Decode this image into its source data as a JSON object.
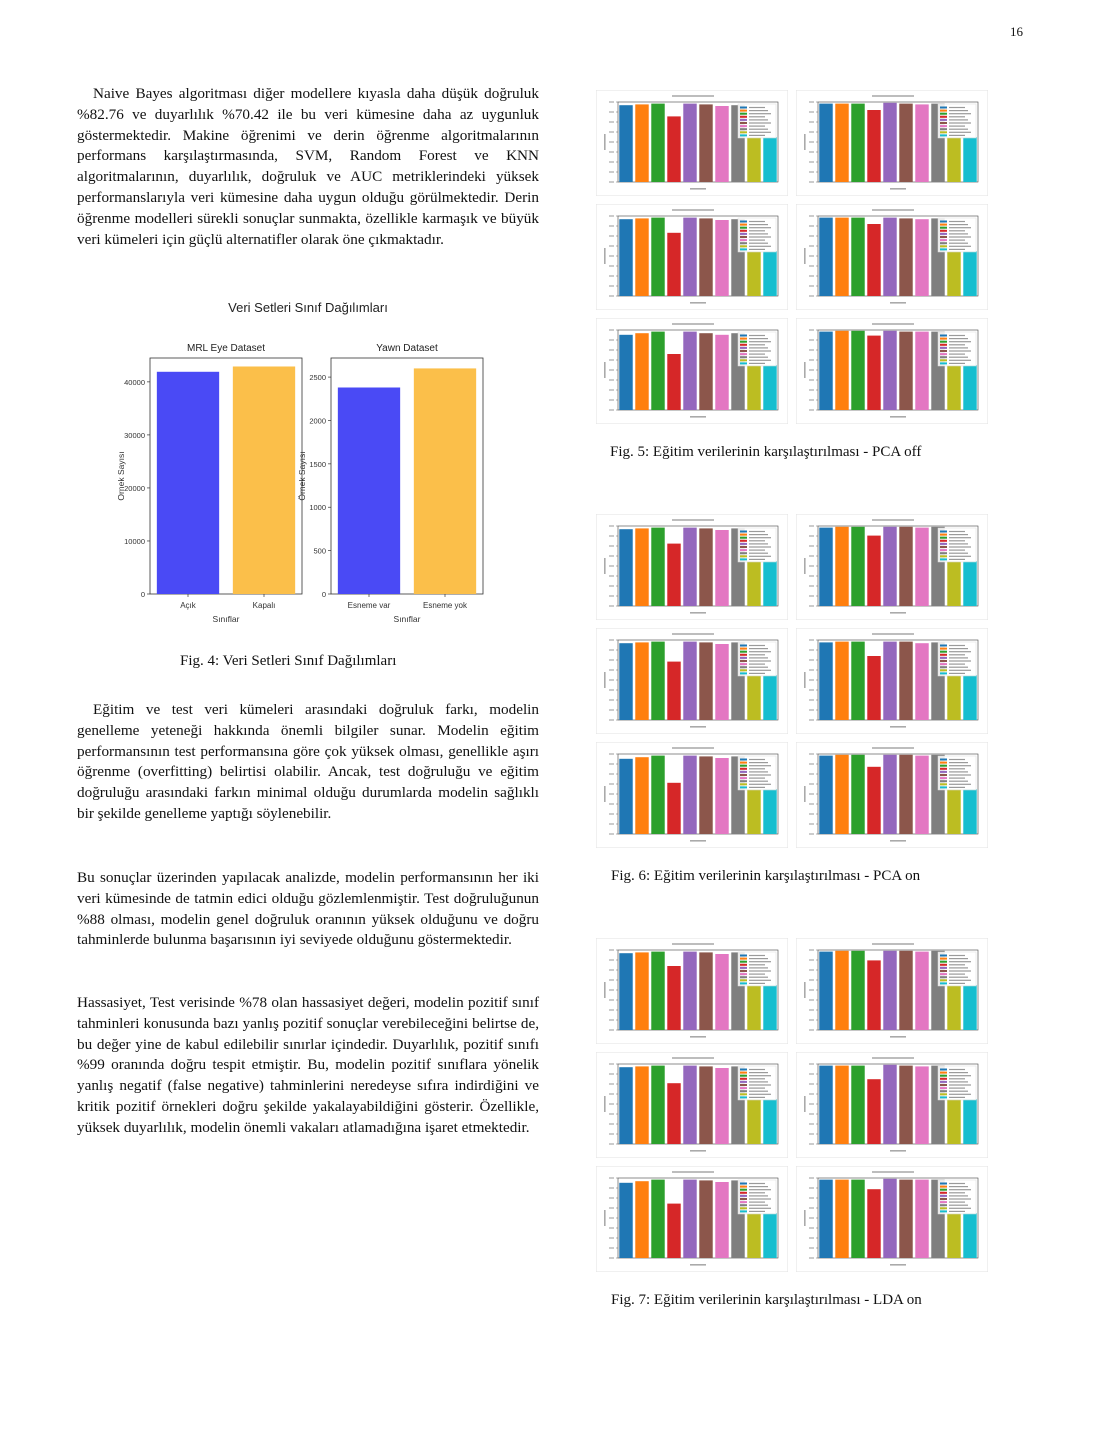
{
  "page_number": "16",
  "paragraphs": {
    "p1": "Naive Bayes algoritması diğer modellere kıyasla daha düşük doğruluk %82.76 ve duyarlılık %70.42 ile bu veri kümesine daha az uygunluk göstermektedir. Makine öğrenimi ve derin öğrenme algoritmalarının performans karşılaştırmasında, SVM, Random Forest ve KNN algoritmalarının, duyarlılık, doğruluk ve AUC metriklerindeki yüksek performanslarıyla veri kümesine daha uygun olduğu görülmektedir. Derin öğrenme modelleri sürekli sonuçlar sunmakta, özellikle karmaşık ve büyük veri kümeleri için güçlü alternatifler olarak öne çıkmaktadır.",
    "p2": "Eğitim ve test veri kümeleri arasındaki doğruluk farkı, modelin genelleme yeteneği hakkında önemli bilgiler sunar. Modelin eğitim performansının test performansına göre çok yüksek olması, genellikle aşırı öğrenme (overfitting) belirtisi olabilir. Ancak, test doğruluğu ve eğitim doğruluğu arasındaki farkın minimal olduğu durumlarda modelin sağlıklı bir şekilde genelleme yaptığı söylenebilir.",
    "p3": "Bu sonuçlar üzerinden yapılacak analizde, modelin performansının her iki veri kümesinde de tatmin edici olduğu gözlemlenmiştir. Test doğruluğunun %88 olması, modelin genel doğruluk oranının yüksek olduğunu ve doğru tahminlerde bulunma başarısının iyi seviyede olduğunu göstermektedir.",
    "p4": "Hassasiyet, Test verisinde %78 olan hassasiyet değeri, modelin pozitif sınıf tahminleri konusunda bazı yanlış pozitif sonuçlar verebileceğini belirtse de, bu değer yine de kabul edilebilir sınırlar içindedir. Duyarlılık, pozitif sınıfı %99 oranında doğru tespit etmiştir. Bu, modelin pozitif sınıflara yönelik yanlış negatif (false negative) tahminlerini neredeyse sıfıra indirdiğini ve kritik pozitif örnekleri doğru şekilde yakalayabildiğini gösterir. Özellikle, yüksek duyarlılık, modelin önemli vakaları atlamadığına işaret etmektedir."
  },
  "captions": {
    "fig4": "Fig. 4: Veri Setleri Sınıf Dağılımları",
    "fig5": "Fig. 5: Eğitim verilerinin karşılaştırılması - PCA off",
    "fig6": "Fig. 6: Eğitim verilerinin karşılaştırılması - PCA on",
    "fig7": "Fig. 7: Eğitim verilerinin karşılaştırılması - LDA on"
  },
  "chart_data": [
    {
      "type": "bar",
      "id": "fig4",
      "title": "Veri Setleri Sınıf Dağılımları",
      "subplots": [
        {
          "title": "MRL Eye Dataset",
          "categories": [
            "Açık",
            "Kapalı"
          ],
          "values": [
            41900,
            42900
          ],
          "colors": [
            "#4a4af5",
            "#fbbf4a"
          ],
          "xlabel": "Sınıflar",
          "ylabel": "Örnek Sayısı",
          "ylim": [
            0,
            44500
          ],
          "yticks": [
            0,
            10000,
            20000,
            30000,
            40000
          ]
        },
        {
          "title": "Yawn Dataset",
          "categories": [
            "Esneme var",
            "Esneme yok"
          ],
          "values": [
            2380,
            2600
          ],
          "colors": [
            "#4a4af5",
            "#fbbf4a"
          ],
          "xlabel": "Sınıflar",
          "ylabel": "Örnek Sayısı",
          "ylim": [
            0,
            2720
          ],
          "yticks": [
            0,
            500,
            1000,
            1500,
            2000,
            2500
          ]
        }
      ]
    },
    {
      "type": "bar",
      "id": "fig5",
      "layout": "3x2 grid",
      "ylim": [
        0,
        1
      ],
      "colors": [
        "#1f77b4",
        "#ff7f0e",
        "#2ca02c",
        "#d62728",
        "#9467bd",
        "#8c564b",
        "#e377c2",
        "#7f7f7f",
        "#bcbd22",
        "#17becf"
      ],
      "panels": [
        {
          "values": [
            0.96,
            0.97,
            0.98,
            0.82,
            0.98,
            0.97,
            0.95,
            0.96,
            0.56,
            0.56
          ]
        },
        {
          "values": [
            0.98,
            0.98,
            0.98,
            0.9,
            0.99,
            0.98,
            0.97,
            0.98,
            0.56,
            0.56
          ]
        },
        {
          "values": [
            0.96,
            0.97,
            0.98,
            0.79,
            0.98,
            0.97,
            0.95,
            0.96,
            0.56,
            0.56
          ]
        },
        {
          "values": [
            0.98,
            0.98,
            0.98,
            0.9,
            0.98,
            0.97,
            0.96,
            0.97,
            0.56,
            0.56
          ]
        },
        {
          "values": [
            0.94,
            0.96,
            0.98,
            0.7,
            0.98,
            0.96,
            0.94,
            0.96,
            0.56,
            0.56
          ]
        },
        {
          "values": [
            0.98,
            0.99,
            0.99,
            0.93,
            0.99,
            0.98,
            0.98,
            0.98,
            0.56,
            0.56
          ]
        }
      ]
    },
    {
      "type": "bar",
      "id": "fig6",
      "layout": "3x2 grid",
      "ylim": [
        0,
        1
      ],
      "colors": [
        "#1f77b4",
        "#ff7f0e",
        "#2ca02c",
        "#d62728",
        "#9467bd",
        "#8c564b",
        "#e377c2",
        "#7f7f7f",
        "#bcbd22",
        "#17becf"
      ],
      "panels": [
        {
          "values": [
            0.96,
            0.97,
            0.98,
            0.78,
            0.98,
            0.97,
            0.95,
            0.97,
            0.56,
            0.56
          ]
        },
        {
          "values": [
            0.98,
            0.99,
            0.99,
            0.88,
            0.99,
            0.99,
            0.98,
            0.99,
            0.56,
            0.56
          ]
        },
        {
          "values": [
            0.96,
            0.97,
            0.98,
            0.73,
            0.98,
            0.97,
            0.95,
            0.97,
            0.56,
            0.56
          ]
        },
        {
          "values": [
            0.97,
            0.98,
            0.98,
            0.8,
            0.98,
            0.98,
            0.96,
            0.97,
            0.56,
            0.56
          ]
        },
        {
          "values": [
            0.94,
            0.96,
            0.98,
            0.64,
            0.98,
            0.97,
            0.95,
            0.97,
            0.56,
            0.56
          ]
        },
        {
          "values": [
            0.98,
            0.99,
            0.99,
            0.84,
            0.99,
            0.99,
            0.98,
            0.99,
            0.56,
            0.56
          ]
        }
      ]
    },
    {
      "type": "bar",
      "id": "fig7",
      "layout": "3x2 grid",
      "ylim": [
        0,
        1
      ],
      "colors": [
        "#1f77b4",
        "#ff7f0e",
        "#2ca02c",
        "#d62728",
        "#9467bd",
        "#8c564b",
        "#e377c2",
        "#7f7f7f",
        "#bcbd22",
        "#17becf"
      ],
      "panels": [
        {
          "values": [
            0.96,
            0.97,
            0.98,
            0.8,
            0.98,
            0.97,
            0.95,
            0.97,
            0.56,
            0.56
          ]
        },
        {
          "values": [
            0.98,
            0.99,
            0.99,
            0.87,
            0.99,
            0.99,
            0.98,
            0.99,
            0.56,
            0.56
          ]
        },
        {
          "values": [
            0.96,
            0.97,
            0.98,
            0.76,
            0.98,
            0.97,
            0.95,
            0.97,
            0.56,
            0.56
          ]
        },
        {
          "values": [
            0.98,
            0.98,
            0.98,
            0.81,
            0.99,
            0.98,
            0.97,
            0.98,
            0.56,
            0.56
          ]
        },
        {
          "values": [
            0.94,
            0.96,
            0.98,
            0.68,
            0.98,
            0.97,
            0.95,
            0.97,
            0.56,
            0.56
          ]
        },
        {
          "values": [
            0.98,
            0.98,
            0.98,
            0.86,
            0.99,
            0.98,
            0.98,
            0.98,
            0.56,
            0.56
          ]
        }
      ]
    }
  ]
}
